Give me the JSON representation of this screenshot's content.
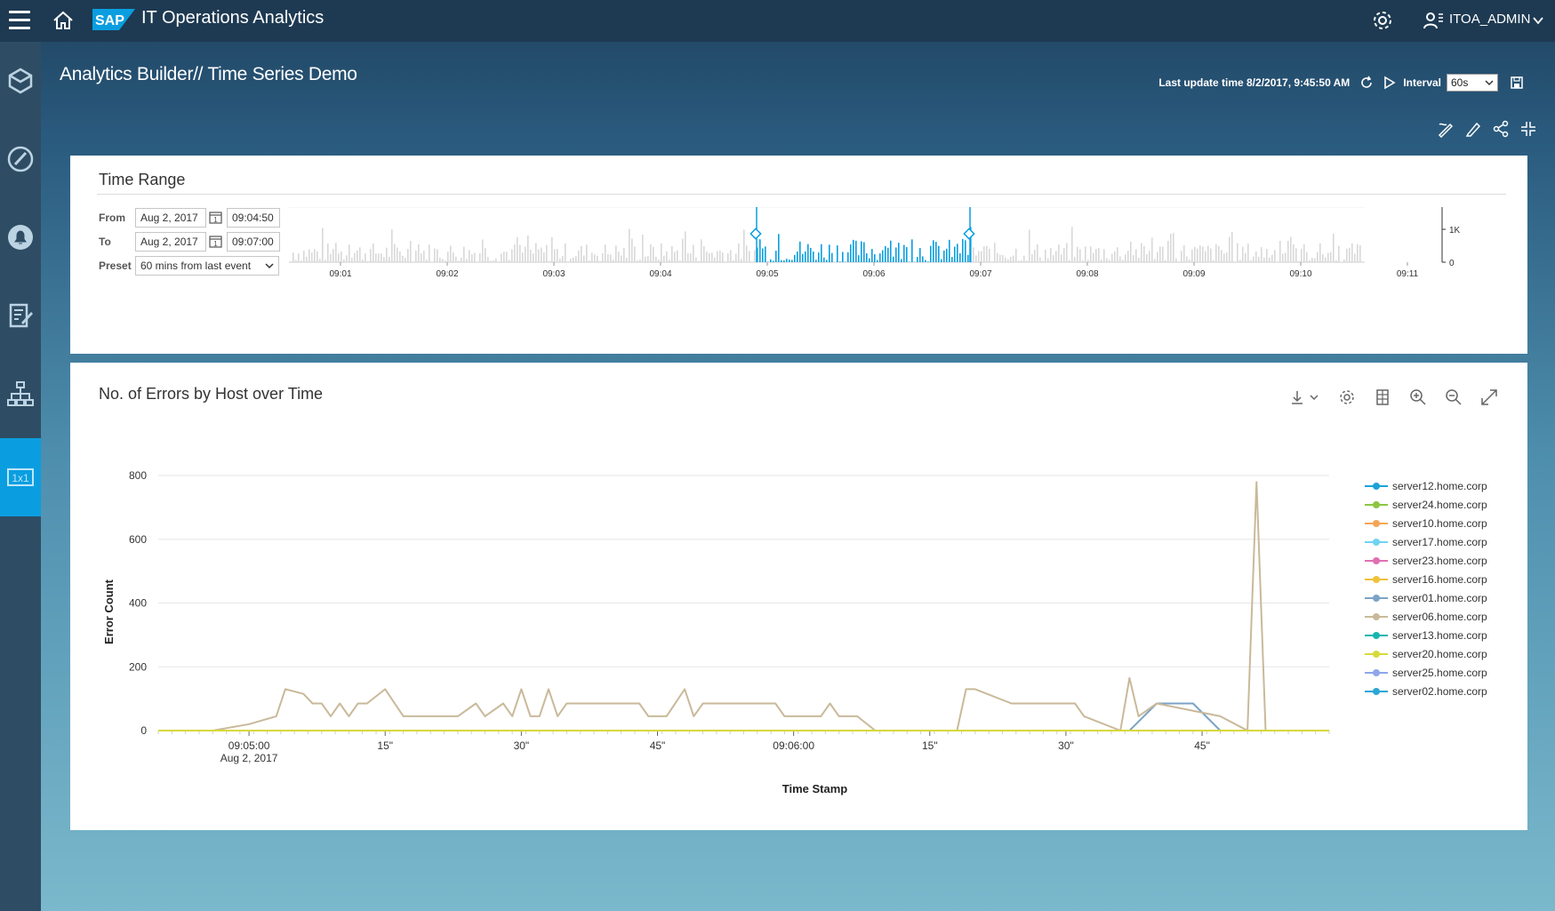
{
  "topbar": {
    "app_title": "IT Operations Analytics",
    "logo_text": "SAP",
    "user_name": "ITOA_ADMIN"
  },
  "sidebar": {
    "items": [
      "cube-icon",
      "speedometer-icon",
      "bell-icon",
      "document-edit-icon",
      "hierarchy-icon",
      "grid-1x1-icon"
    ],
    "active_label": "1x1"
  },
  "header": {
    "title": "Analytics Builder// Time Series Demo",
    "last_update": "Last update time 8/2/2017, 9:45:50 AM",
    "interval_label": "Interval",
    "interval_value": "60s"
  },
  "time_range": {
    "title": "Time Range",
    "from_label": "From",
    "from_date": "Aug 2, 2017",
    "from_time": "09:04:50",
    "to_label": "To",
    "to_date": "Aug 2, 2017",
    "to_time": "09:07:00",
    "preset_label": "Preset",
    "preset_value": "60 mins from last event",
    "calendar_glyph": "1",
    "ticks": [
      "09:01",
      "09:02",
      "09:03",
      "09:04",
      "09:05",
      "09:06",
      "09:07",
      "09:08",
      "09:09",
      "09:10",
      "09:11"
    ],
    "y_ticks": [
      "1K",
      "0"
    ]
  },
  "chart": {
    "title": "No. of Errors by Host over Time",
    "colors": {
      "accent": "#0a9ee0",
      "main": "#c9b99a",
      "secondary": "#6fb6d6"
    }
  },
  "chart_data": {
    "type": "line",
    "title": "No. of Errors by Host over Time",
    "xlabel": "Time Stamp",
    "ylabel": "Error Count",
    "ylim": [
      0,
      800
    ],
    "y_ticks": [
      "0",
      "200",
      "400",
      "600",
      "800"
    ],
    "x_ticks": [
      {
        "t": 0,
        "label": "09:05:00",
        "sub": "Aug 2, 2017"
      },
      {
        "t": 15,
        "label": "15\""
      },
      {
        "t": 30,
        "label": "30\""
      },
      {
        "t": 45,
        "label": "45\""
      },
      {
        "t": 60,
        "label": "09:06:00"
      },
      {
        "t": 75,
        "label": "15\""
      },
      {
        "t": 90,
        "label": "30\""
      },
      {
        "t": 105,
        "label": "45\""
      }
    ],
    "x_range": [
      -10,
      119
    ],
    "series": [
      {
        "name": "server12.home.corp",
        "color": "#1aa3d9",
        "points": [
          [
            -10,
            0
          ],
          [
            119,
            0
          ]
        ]
      },
      {
        "name": "server24.home.corp",
        "color": "#8cc63f",
        "points": []
      },
      {
        "name": "server10.home.corp",
        "color": "#f4a556",
        "points": []
      },
      {
        "name": "server17.home.corp",
        "color": "#6fd3f3",
        "points": []
      },
      {
        "name": "server23.home.corp",
        "color": "#e26fb1",
        "points": []
      },
      {
        "name": "server16.home.corp",
        "color": "#f0c23a",
        "points": []
      },
      {
        "name": "server01.home.corp",
        "color": "#7ba3c6",
        "points": [
          [
            97,
            0
          ],
          [
            100,
            85
          ],
          [
            104,
            85
          ],
          [
            107,
            0
          ]
        ]
      },
      {
        "name": "server06.home.corp",
        "color": "#c9b99a",
        "points": [
          [
            -4,
            0
          ],
          [
            0,
            20
          ],
          [
            3,
            45
          ],
          [
            4,
            130
          ],
          [
            6,
            115
          ],
          [
            7,
            85
          ],
          [
            8,
            85
          ],
          [
            9,
            45
          ],
          [
            10,
            85
          ],
          [
            11,
            45
          ],
          [
            12,
            85
          ],
          [
            13,
            85
          ],
          [
            15,
            130
          ],
          [
            17,
            45
          ],
          [
            22,
            45
          ],
          [
            23,
            45
          ],
          [
            25,
            85
          ],
          [
            26,
            45
          ],
          [
            28,
            85
          ],
          [
            29,
            45
          ],
          [
            30,
            130
          ],
          [
            31,
            45
          ],
          [
            32,
            45
          ],
          [
            33,
            130
          ],
          [
            34,
            45
          ],
          [
            35,
            85
          ],
          [
            43,
            85
          ],
          [
            44,
            45
          ],
          [
            46,
            45
          ],
          [
            48,
            130
          ],
          [
            49,
            45
          ],
          [
            50,
            85
          ],
          [
            58,
            85
          ],
          [
            59,
            45
          ],
          [
            63,
            45
          ],
          [
            64,
            85
          ],
          [
            65,
            45
          ],
          [
            67,
            45
          ],
          [
            69,
            0
          ],
          [
            78,
            0
          ],
          [
            79,
            130
          ],
          [
            80,
            130
          ],
          [
            84,
            85
          ],
          [
            91,
            85
          ],
          [
            92,
            45
          ],
          [
            96,
            0
          ],
          [
            97,
            165
          ],
          [
            98,
            45
          ],
          [
            100,
            85
          ],
          [
            107,
            45
          ],
          [
            110,
            0
          ],
          [
            111,
            780
          ],
          [
            112,
            0
          ],
          [
            119,
            0
          ]
        ]
      },
      {
        "name": "server13.home.corp",
        "color": "#19b5b0",
        "points": []
      },
      {
        "name": "server20.home.corp",
        "color": "#d7d93a",
        "points": [
          [
            -10,
            0
          ],
          [
            -6,
            0
          ],
          [
            112,
            0
          ],
          [
            119,
            0
          ]
        ]
      },
      {
        "name": "server25.home.corp",
        "color": "#8fa6ea",
        "points": []
      },
      {
        "name": "server02.home.corp",
        "color": "#2aa7d6",
        "points": []
      }
    ],
    "legend_position": "right"
  }
}
